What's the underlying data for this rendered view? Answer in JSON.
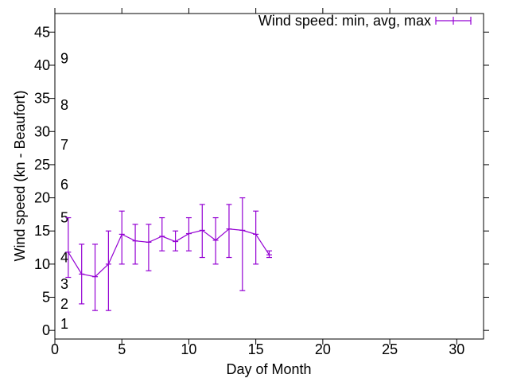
{
  "app": {
    "background": "#ffffff",
    "axis_color": "#000000",
    "text_color": "#000000"
  },
  "chart_data": {
    "type": "line",
    "subtype": "errorbars",
    "title": "",
    "xlabel": "Day of Month",
    "ylabel": "Wind speed (kn - Beaufort)",
    "legend": {
      "label": "Wind speed: min, avg, max",
      "position": "top-right-inside",
      "marker": "errorbar"
    },
    "series_color": "#9400D3",
    "grid": false,
    "tick_direction": "out",
    "xlim": [
      0,
      32
    ],
    "ylim": [
      -1.3,
      47.8
    ],
    "x_ticks": [
      0,
      5,
      10,
      15,
      20,
      25,
      30
    ],
    "y_ticks": [
      0,
      5,
      10,
      15,
      20,
      25,
      30,
      35,
      40,
      45
    ],
    "secondary_scale": {
      "name": "Beaufort",
      "labels": [
        [
          1,
          1
        ],
        [
          2,
          4
        ],
        [
          3,
          7
        ],
        [
          4,
          11
        ],
        [
          5,
          17
        ],
        [
          6,
          22
        ],
        [
          7,
          28
        ],
        [
          8,
          34
        ],
        [
          9,
          41
        ]
      ]
    },
    "x": [
      1,
      2,
      3,
      4,
      5,
      6,
      7,
      8,
      9,
      10,
      11,
      12,
      13,
      14,
      15,
      16
    ],
    "series": [
      {
        "name": "min",
        "values": [
          8,
          4,
          3,
          3,
          10,
          10,
          9,
          12,
          12,
          12,
          11,
          10,
          11,
          6,
          10,
          11
        ]
      },
      {
        "name": "avg",
        "values": [
          11.8,
          8.5,
          8.1,
          10.0,
          14.5,
          13.5,
          13.3,
          14.2,
          13.4,
          14.6,
          15.1,
          13.6,
          15.3,
          15.1,
          14.5,
          11.4
        ]
      },
      {
        "name": "max",
        "values": [
          17,
          13,
          13,
          15,
          18,
          16,
          16,
          17,
          15,
          17,
          19,
          17,
          19,
          20,
          18,
          12
        ]
      }
    ]
  }
}
